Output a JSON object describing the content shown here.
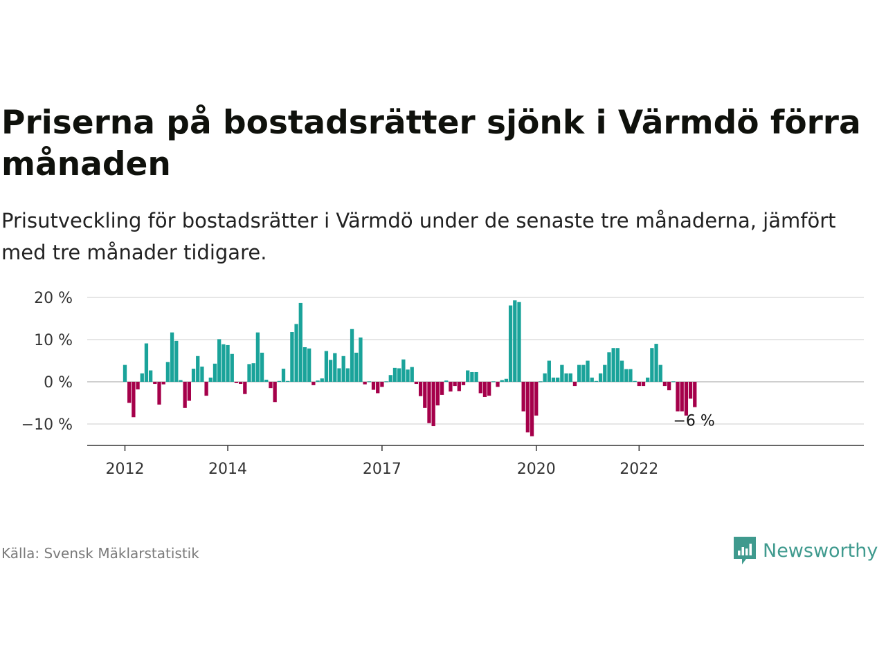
{
  "title": "Priserna på bostadsrätter sjönk i Värmdö förra månaden",
  "subtitle": "Prisutveckling för bostadsrätter i Värmdö under de senaste tre månaderna, jämfört med tre månader tidigare.",
  "source": "Källa: Svensk Mäklarstatistik",
  "brand": "Newsworthy",
  "colors": {
    "positive": "#1aa39a",
    "negative": "#a5004a",
    "grid": "#dddddd",
    "axis": "#333333",
    "brand": "#3f9a8e"
  },
  "chart_data": {
    "type": "bar",
    "y_ticks": [
      20,
      10,
      0,
      -10
    ],
    "y_tick_labels": [
      "20 %",
      "10 %",
      "0 %",
      "−10 %"
    ],
    "ylim": [
      -15,
      20
    ],
    "x_tick_labels": [
      "2012",
      "2014",
      "2017",
      "2020",
      "2022"
    ],
    "x_tick_dates": [
      "2012-01",
      "2014-01",
      "2017-01",
      "2020-01",
      "2022-01"
    ],
    "x_start": "2012-01",
    "annotation": "−6 %",
    "values": [
      4,
      -5,
      -8.4,
      -1.8,
      2,
      9.1,
      2.7,
      -0.5,
      -5.4,
      -0.6,
      4.7,
      11.7,
      9.7,
      0.4,
      -6.2,
      -4.5,
      3.1,
      6.1,
      3.6,
      -3.3,
      1,
      4.3,
      10.1,
      8.9,
      8.7,
      6.6,
      -0.3,
      -0.5,
      -2.9,
      4.2,
      4.4,
      11.7,
      6.9,
      0.5,
      -1.5,
      -4.8,
      0.2,
      3.1,
      0.2,
      11.8,
      13.7,
      18.7,
      8.2,
      7.9,
      -0.8,
      0.3,
      0.8,
      7.3,
      5.2,
      6.8,
      3.2,
      6.1,
      3.2,
      12.5,
      6.9,
      10.5,
      -0.6,
      0.1,
      -1.9,
      -2.7,
      -1.2,
      0.1,
      1.6,
      3.3,
      3.2,
      5.3,
      2.9,
      3.5,
      -0.5,
      -3.4,
      -6.2,
      -9.8,
      -10.5,
      -5.6,
      -3.1,
      0.3,
      -2.3,
      -1,
      -2.2,
      -0.8,
      2.7,
      2.3,
      2.3,
      -2.7,
      -3.6,
      -3.3,
      0.1,
      -1.2,
      0.4,
      0.7,
      18.1,
      19.3,
      18.9,
      -7,
      -12,
      -12.9,
      -8,
      0.1,
      2,
      5,
      1,
      1,
      4,
      2,
      2,
      -1,
      4,
      4,
      5,
      1,
      0.2,
      2,
      4,
      7,
      8,
      8,
      5,
      3,
      3,
      0.2,
      -1,
      -1,
      1,
      8,
      9,
      4,
      -1,
      -2,
      0.1,
      -7,
      -7,
      -8,
      -4,
      -6
    ]
  }
}
